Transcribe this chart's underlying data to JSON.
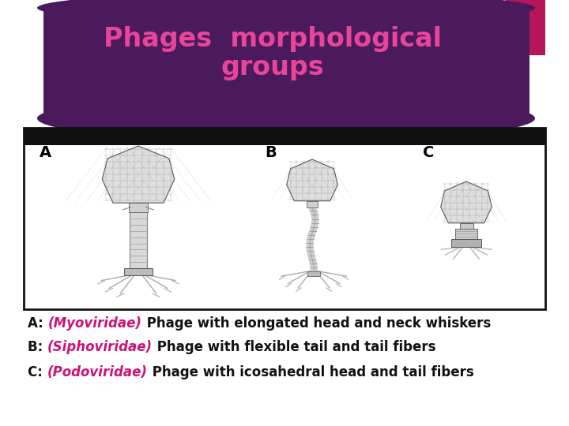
{
  "title_line1": "Phages  morphological",
  "title_line2": "groups",
  "title_color": "#e8459a",
  "title_bg_color": "#4a1a5c",
  "accent_color": "#b5165a",
  "bg_color": "#ffffff",
  "image_border_color": "#111111",
  "label_A": "A",
  "label_B": "B",
  "label_C": "C",
  "line1_prefix": "A: ",
  "line1_highlight": "(Myoviridae)",
  "line1_rest": " Phage with elongated head and neck whiskers",
  "line2_prefix": "B: ",
  "line2_highlight": "(Siphoviridae)",
  "line2_rest": " Phage with flexible tail and tail fibers",
  "line3_prefix": "C: ",
  "line3_highlight": "(Podoviridae)",
  "line3_rest": " Phage with icosahedral head and tail fibers",
  "highlight_color": "#cc1177",
  "text_color": "#111111",
  "font_size_title": 24,
  "font_size_labels": 12,
  "font_size_abc": 12
}
